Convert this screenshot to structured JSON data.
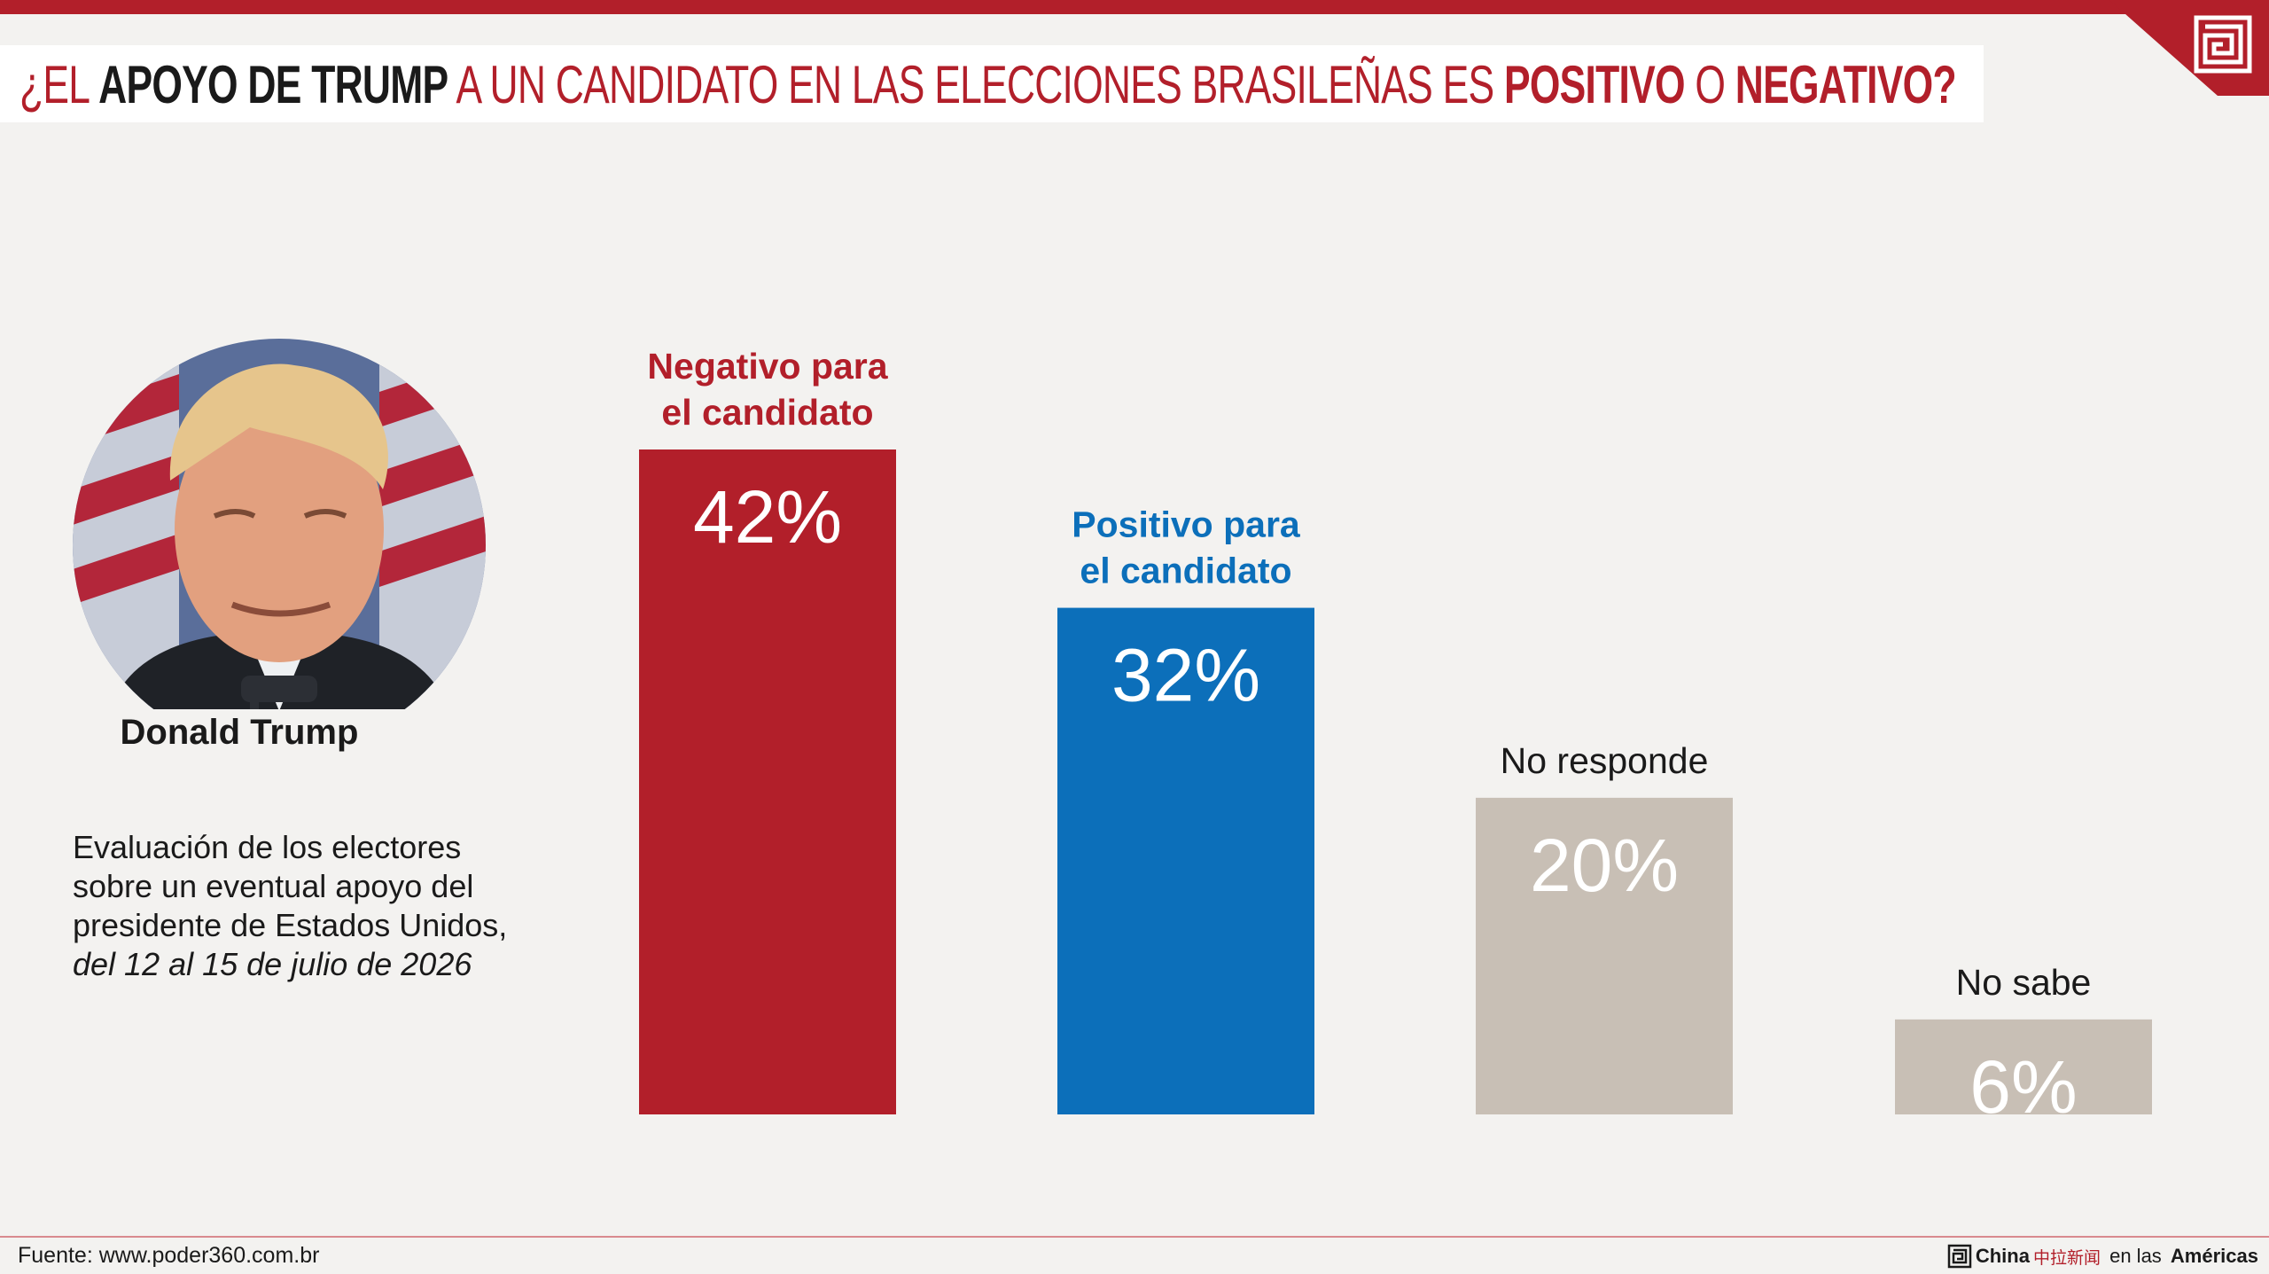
{
  "header": {
    "title_parts": [
      "¿EL ",
      "APOYO DE TRUMP",
      " A UN CANDIDATO EN LAS ELECCIONES BRASILEÑAS ES ",
      "POSITIVO",
      " O ",
      "NEGATIVO?"
    ]
  },
  "subject": {
    "name": "Donald Trump",
    "description_lines": [
      "Evaluación de los electores",
      "sobre un eventual apoyo del",
      "presidente de Estados Unidos,"
    ],
    "date_range": "del 12 al 15 de julio de 2026"
  },
  "colors": {
    "accent_red": "#b21f2a",
    "blue": "#0c6fba",
    "beige": "#c8bfb5",
    "background": "#f3f2f0"
  },
  "chart_data": {
    "type": "bar",
    "categories": [
      [
        "Negativo para",
        "el candidato"
      ],
      [
        "Positivo para",
        "el candidato"
      ],
      [
        "No responde"
      ],
      [
        "No sabe"
      ]
    ],
    "values": [
      42,
      32,
      20,
      6
    ],
    "value_labels": [
      "42%",
      "32%",
      "20%",
      "6%"
    ],
    "bar_colors": [
      "#b21f2a",
      "#0c6fba",
      "#c8bfb5",
      "#c8bfb5"
    ],
    "label_colors": [
      "#b21f2a",
      "#0c6fba",
      "#1a1a1a",
      "#1a1a1a"
    ],
    "ylim": [
      0,
      42
    ],
    "grid": false
  },
  "footer": {
    "source": "Fuente: www.poder360.com.br",
    "brand_china": "China",
    "brand_chinese": "中拉新闻",
    "brand_middle": " en las ",
    "brand_americas": "Américas"
  }
}
